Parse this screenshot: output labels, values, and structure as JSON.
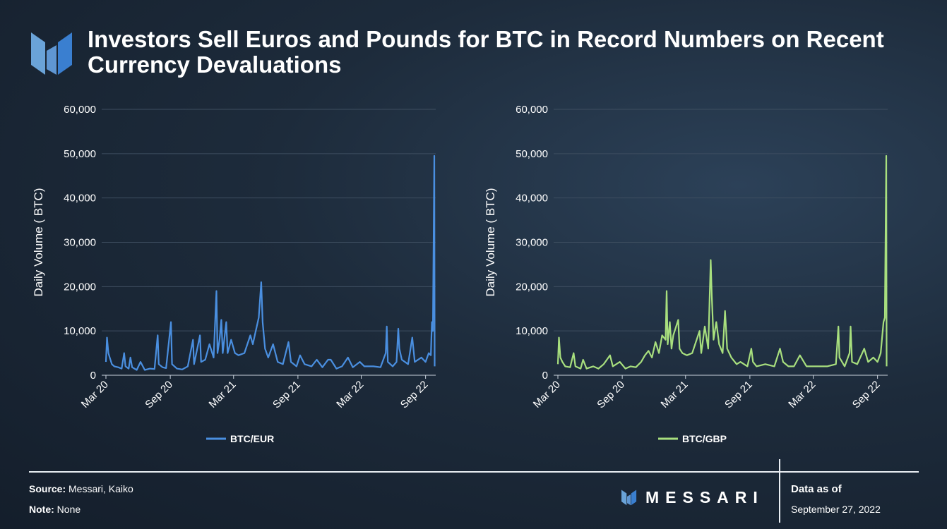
{
  "title": "Investors Sell Euros and Pounds for BTC in Record Numbers on Recent Currency Devaluations",
  "footer": {
    "source_label": "Source:",
    "source_value": "Messari, Kaiko",
    "note_label": "Note:",
    "note_value": "None",
    "brand": "MESSARI",
    "asof_label": "Data as of",
    "asof_date": "September 27, 2022"
  },
  "colors": {
    "eur": "#4a8fe0",
    "gbp": "#a8df7e",
    "grid": "#3e4e60",
    "text": "#ffffff"
  },
  "chart_data": [
    {
      "id": "eur",
      "type": "line",
      "ylabel": "Daily Volume ( BTC)",
      "ylim": [
        0,
        60000
      ],
      "yticks": [
        0,
        10000,
        20000,
        30000,
        40000,
        50000,
        60000
      ],
      "ytick_labels": [
        "0",
        "10,000",
        "20,000",
        "30,000",
        "40,000",
        "50,000",
        "60,000"
      ],
      "xlim": [
        "2020-03-01",
        "2022-09-30"
      ],
      "xticks": [
        "Mar 20",
        "Sep 20",
        "Mar 21",
        "Sep 21",
        "Mar 22",
        "Sep 22"
      ],
      "grid": true,
      "legend": "bottom-center",
      "series": [
        {
          "name": "BTC/EUR",
          "color": "#4a8fe0",
          "points": [
            [
              "2020-03-01",
              3000
            ],
            [
              "2020-03-04",
              8500
            ],
            [
              "2020-03-08",
              5000
            ],
            [
              "2020-03-12",
              4000
            ],
            [
              "2020-03-18",
              2500
            ],
            [
              "2020-03-25",
              2000
            ],
            [
              "2020-04-05",
              1800
            ],
            [
              "2020-04-15",
              1500
            ],
            [
              "2020-04-22",
              5000
            ],
            [
              "2020-04-26",
              2000
            ],
            [
              "2020-05-05",
              1500
            ],
            [
              "2020-05-10",
              4000
            ],
            [
              "2020-05-15",
              1800
            ],
            [
              "2020-05-28",
              1200
            ],
            [
              "2020-06-08",
              3000
            ],
            [
              "2020-06-20",
              1200
            ],
            [
              "2020-07-05",
              1500
            ],
            [
              "2020-07-18",
              1400
            ],
            [
              "2020-07-27",
              9000
            ],
            [
              "2020-07-30",
              2500
            ],
            [
              "2020-08-10",
              1800
            ],
            [
              "2020-08-20",
              1600
            ],
            [
              "2020-09-03",
              12000
            ],
            [
              "2020-09-06",
              2500
            ],
            [
              "2020-09-20",
              1500
            ],
            [
              "2020-10-05",
              1300
            ],
            [
              "2020-10-21",
              2000
            ],
            [
              "2020-11-05",
              8000
            ],
            [
              "2020-11-08",
              2500
            ],
            [
              "2020-11-25",
              9000
            ],
            [
              "2020-11-28",
              3000
            ],
            [
              "2020-12-10",
              3500
            ],
            [
              "2020-12-22",
              7000
            ],
            [
              "2021-01-03",
              4000
            ],
            [
              "2021-01-11",
              19000
            ],
            [
              "2021-01-14",
              5000
            ],
            [
              "2021-01-20",
              8000
            ],
            [
              "2021-01-25",
              12500
            ],
            [
              "2021-01-29",
              5000
            ],
            [
              "2021-02-08",
              12000
            ],
            [
              "2021-02-12",
              5000
            ],
            [
              "2021-02-22",
              8000
            ],
            [
              "2021-03-05",
              5000
            ],
            [
              "2021-03-15",
              4500
            ],
            [
              "2021-04-01",
              5000
            ],
            [
              "2021-04-18",
              9000
            ],
            [
              "2021-04-25",
              7000
            ],
            [
              "2021-05-12",
              13000
            ],
            [
              "2021-05-19",
              21000
            ],
            [
              "2021-05-23",
              12000
            ],
            [
              "2021-05-30",
              6000
            ],
            [
              "2021-06-08",
              4000
            ],
            [
              "2021-06-22",
              7000
            ],
            [
              "2021-07-05",
              3000
            ],
            [
              "2021-07-20",
              2500
            ],
            [
              "2021-08-05",
              7500
            ],
            [
              "2021-08-12",
              3000
            ],
            [
              "2021-08-28",
              2000
            ],
            [
              "2021-09-07",
              4500
            ],
            [
              "2021-09-20",
              2500
            ],
            [
              "2021-10-10",
              2000
            ],
            [
              "2021-10-25",
              3500
            ],
            [
              "2021-11-10",
              1800
            ],
            [
              "2021-11-26",
              3500
            ],
            [
              "2021-12-04",
              3500
            ],
            [
              "2021-12-20",
              1500
            ],
            [
              "2022-01-05",
              2000
            ],
            [
              "2022-01-22",
              4000
            ],
            [
              "2022-02-05",
              1800
            ],
            [
              "2022-02-25",
              3000
            ],
            [
              "2022-03-10",
              2000
            ],
            [
              "2022-04-05",
              2000
            ],
            [
              "2022-04-25",
              1800
            ],
            [
              "2022-05-10",
              5000
            ],
            [
              "2022-05-13",
              11000
            ],
            [
              "2022-05-16",
              3000
            ],
            [
              "2022-05-30",
              2000
            ],
            [
              "2022-06-10",
              3000
            ],
            [
              "2022-06-15",
              10500
            ],
            [
              "2022-06-18",
              6000
            ],
            [
              "2022-06-25",
              3500
            ],
            [
              "2022-07-13",
              2500
            ],
            [
              "2022-07-25",
              8500
            ],
            [
              "2022-08-01",
              3000
            ],
            [
              "2022-08-20",
              4000
            ],
            [
              "2022-09-01",
              3000
            ],
            [
              "2022-09-10",
              5000
            ],
            [
              "2022-09-16",
              4500
            ],
            [
              "2022-09-19",
              12000
            ],
            [
              "2022-09-22",
              10000
            ],
            [
              "2022-09-26",
              49500
            ],
            [
              "2022-09-27",
              2000
            ]
          ]
        }
      ]
    },
    {
      "id": "gbp",
      "type": "line",
      "ylabel": "Daily Volume ( BTC)",
      "ylim": [
        0,
        60000
      ],
      "yticks": [
        0,
        10000,
        20000,
        30000,
        40000,
        50000,
        60000
      ],
      "ytick_labels": [
        "0",
        "10,000",
        "20,000",
        "30,000",
        "40,000",
        "50,000",
        "60,000"
      ],
      "xlim": [
        "2020-03-01",
        "2022-09-30"
      ],
      "xticks": [
        "Mar 20",
        "Sep 20",
        "Mar 21",
        "Sep 21",
        "Mar 22",
        "Sep 22"
      ],
      "grid": true,
      "legend": "bottom-center",
      "series": [
        {
          "name": "BTC/GBP",
          "color": "#a8df7e",
          "points": [
            [
              "2020-03-01",
              2500
            ],
            [
              "2020-03-04",
              8500
            ],
            [
              "2020-03-08",
              4000
            ],
            [
              "2020-03-14",
              3000
            ],
            [
              "2020-03-22",
              2000
            ],
            [
              "2020-04-05",
              1800
            ],
            [
              "2020-04-15",
              5000
            ],
            [
              "2020-04-20",
              2000
            ],
            [
              "2020-05-05",
              1500
            ],
            [
              "2020-05-12",
              3500
            ],
            [
              "2020-05-22",
              1500
            ],
            [
              "2020-06-10",
              2000
            ],
            [
              "2020-06-25",
              1500
            ],
            [
              "2020-07-10",
              2500
            ],
            [
              "2020-07-28",
              4500
            ],
            [
              "2020-08-05",
              2000
            ],
            [
              "2020-08-25",
              3000
            ],
            [
              "2020-09-10",
              1500
            ],
            [
              "2020-09-25",
              2000
            ],
            [
              "2020-10-10",
              1800
            ],
            [
              "2020-10-25",
              3000
            ],
            [
              "2020-11-05",
              4500
            ],
            [
              "2020-11-15",
              5500
            ],
            [
              "2020-11-25",
              4000
            ],
            [
              "2020-12-05",
              7500
            ],
            [
              "2020-12-15",
              5000
            ],
            [
              "2020-12-24",
              9000
            ],
            [
              "2021-01-03",
              8000
            ],
            [
              "2021-01-06",
              19000
            ],
            [
              "2021-01-09",
              7000
            ],
            [
              "2021-01-15",
              12000
            ],
            [
              "2021-01-20",
              6000
            ],
            [
              "2021-01-25",
              9000
            ],
            [
              "2021-02-08",
              12500
            ],
            [
              "2021-02-12",
              6000
            ],
            [
              "2021-02-20",
              5000
            ],
            [
              "2021-03-05",
              4500
            ],
            [
              "2021-03-20",
              5000
            ],
            [
              "2021-04-10",
              10000
            ],
            [
              "2021-04-15",
              5000
            ],
            [
              "2021-04-25",
              11000
            ],
            [
              "2021-05-05",
              6000
            ],
            [
              "2021-05-12",
              26000
            ],
            [
              "2021-05-15",
              18000
            ],
            [
              "2021-05-20",
              8000
            ],
            [
              "2021-05-28",
              12000
            ],
            [
              "2021-06-05",
              7000
            ],
            [
              "2021-06-15",
              5000
            ],
            [
              "2021-06-22",
              14500
            ],
            [
              "2021-06-28",
              6000
            ],
            [
              "2021-07-10",
              4000
            ],
            [
              "2021-07-25",
              2500
            ],
            [
              "2021-08-05",
              3000
            ],
            [
              "2021-08-25",
              2000
            ],
            [
              "2021-09-05",
              6000
            ],
            [
              "2021-09-10",
              3000
            ],
            [
              "2021-09-20",
              2000
            ],
            [
              "2021-10-15",
              2500
            ],
            [
              "2021-11-10",
              2000
            ],
            [
              "2021-11-26",
              6000
            ],
            [
              "2021-12-05",
              3000
            ],
            [
              "2021-12-20",
              2000
            ],
            [
              "2022-01-05",
              2000
            ],
            [
              "2022-01-22",
              4500
            ],
            [
              "2022-02-10",
              2000
            ],
            [
              "2022-03-10",
              2000
            ],
            [
              "2022-04-10",
              2000
            ],
            [
              "2022-05-05",
              2500
            ],
            [
              "2022-05-12",
              11000
            ],
            [
              "2022-05-15",
              4000
            ],
            [
              "2022-05-30",
              2000
            ],
            [
              "2022-06-13",
              5000
            ],
            [
              "2022-06-16",
              11000
            ],
            [
              "2022-06-20",
              3000
            ],
            [
              "2022-07-05",
              2500
            ],
            [
              "2022-07-25",
              6000
            ],
            [
              "2022-08-05",
              3000
            ],
            [
              "2022-08-20",
              4000
            ],
            [
              "2022-09-01",
              3000
            ],
            [
              "2022-09-10",
              5000
            ],
            [
              "2022-09-18",
              12000
            ],
            [
              "2022-09-22",
              13000
            ],
            [
              "2022-09-26",
              49500
            ],
            [
              "2022-09-27",
              2000
            ]
          ]
        }
      ]
    }
  ]
}
